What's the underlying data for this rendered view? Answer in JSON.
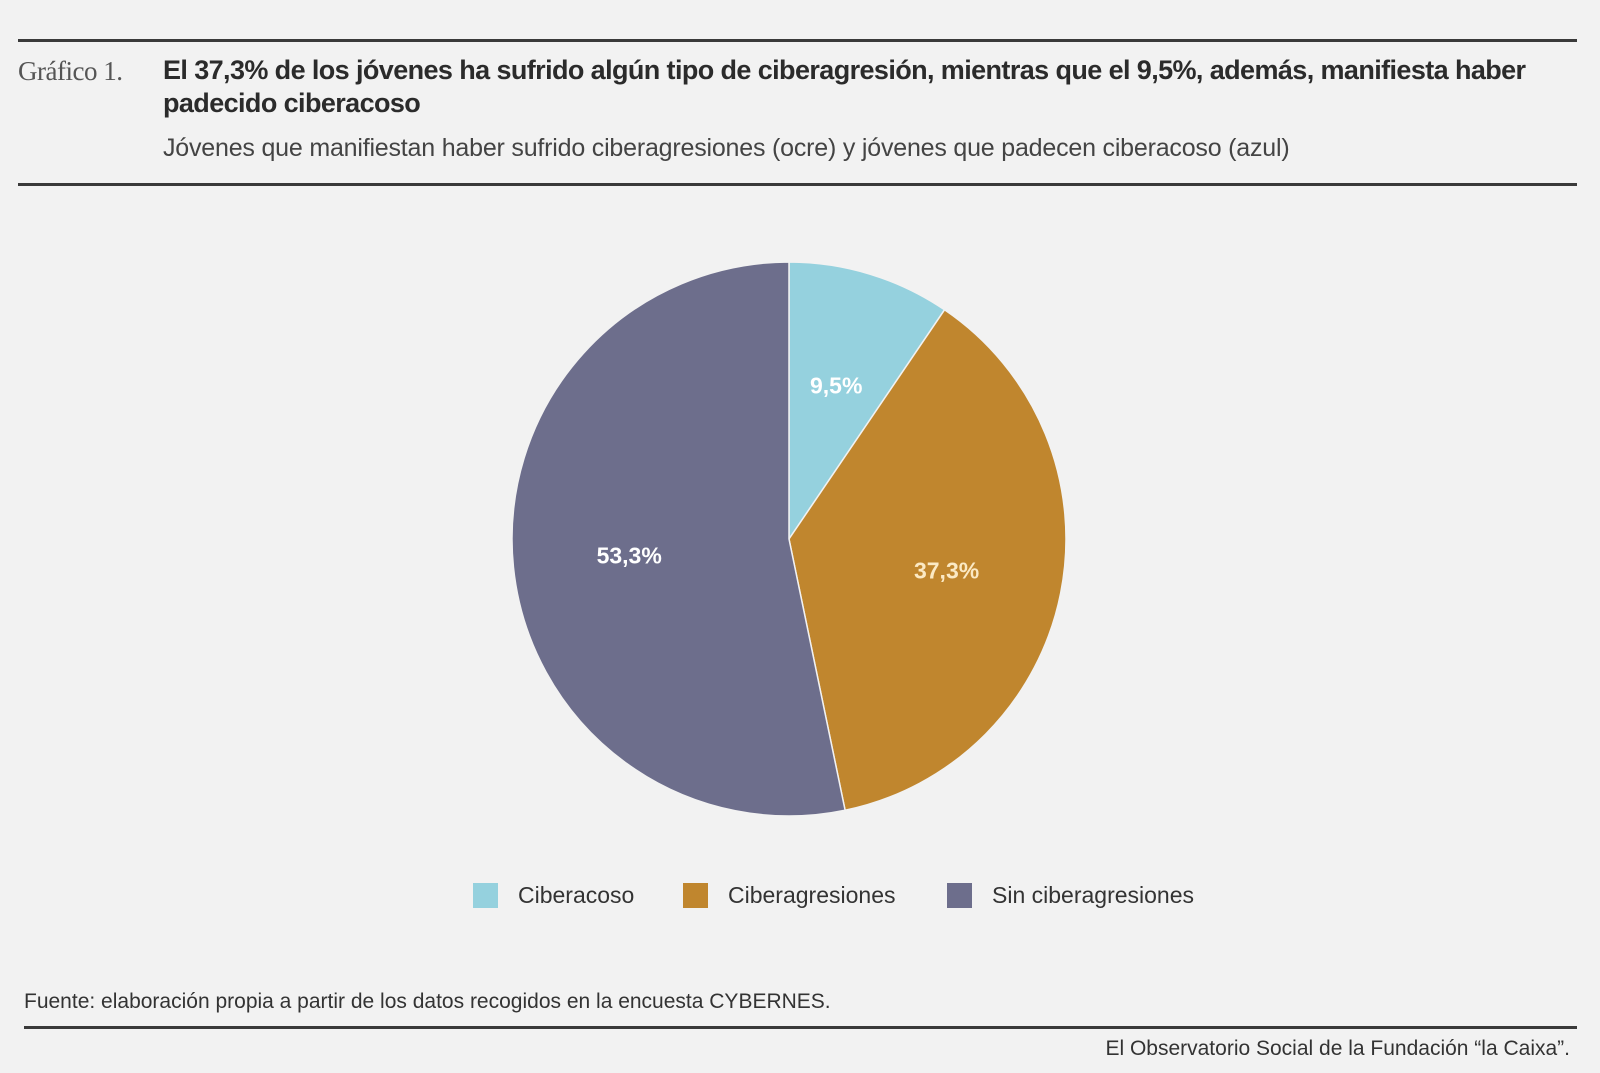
{
  "header": {
    "figure_label": "Gráfico 1.",
    "title": "El 37,3% de los jóvenes ha sufrido algún tipo de ciberagresión, mientras que el 9,5%, además, manifiesta haber padecido ciberacoso",
    "subtitle": "Jóvenes que manifiestan haber sufrido ciberagresiones (ocre) y jóvenes que padecen ciberacoso (azul)"
  },
  "chart_data": {
    "type": "pie",
    "title": "El 37,3% de los jóvenes ha sufrido algún tipo de ciberagresión, mientras que el 9,5%, además, manifiesta haber padecido ciberacoso",
    "subtitle": "Jóvenes que manifiestan haber sufrido ciberagresiones (ocre) y jóvenes que padecen ciberacoso (azul)",
    "start": "top",
    "direction": "clockwise",
    "legend_position": "bottom",
    "slices": [
      {
        "name": "Ciberacoso",
        "value": 9.5,
        "label": "9,5%",
        "color": "#95d1de",
        "label_color": "#ffffff"
      },
      {
        "name": "Ciberagresiones",
        "value": 37.3,
        "label": "37,3%",
        "color": "#c0862e",
        "label_color": "#fbe9c4"
      },
      {
        "name": "Sin ciberagresiones",
        "value": 53.3,
        "label": "53,3%",
        "color": "#6d6e8c",
        "label_color": "#ffffff"
      }
    ]
  },
  "source": "Fuente: elaboración propia a partir de los datos recogidos en la encuesta CYBERNES.",
  "footer": "El Observatorio Social de la Fundación “la Caixa”."
}
